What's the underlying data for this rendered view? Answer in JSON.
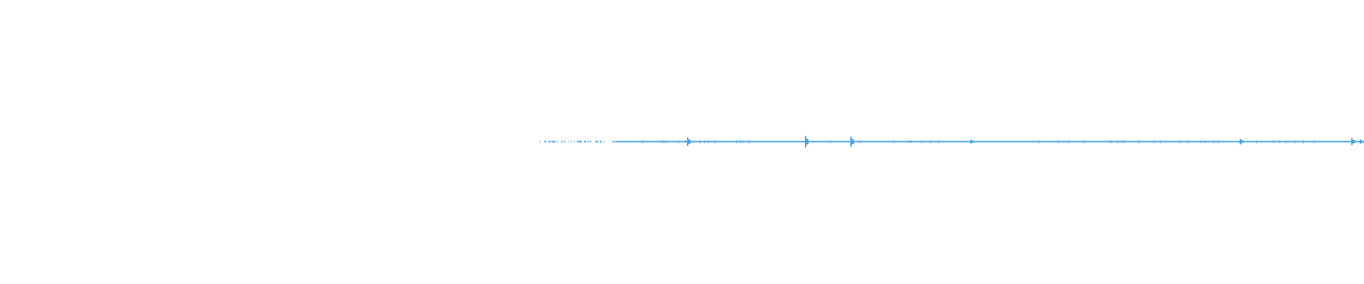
{
  "waveform": {
    "color": "#4aa3e0",
    "background": "#ffffff"
  }
}
